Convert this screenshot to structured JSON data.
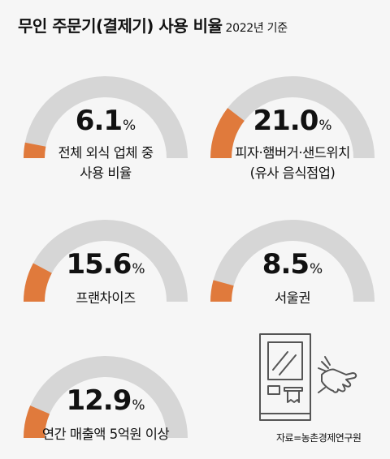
{
  "title": "무인 주문기(결제기) 사용 비율",
  "subtitle": "2022년 기준",
  "source": "자료=농촌경제연구원",
  "colors": {
    "track": "#d6d6d6",
    "fill": "#e07a3c",
    "background": "#f6f6f6"
  },
  "icon": "kiosk-hand-icon",
  "chart_data": {
    "type": "gauge",
    "unit": "%",
    "max": 100,
    "items": [
      {
        "value": 6.1,
        "value_text": "6.1",
        "label_lines": [
          "전체 외식 업체 중",
          "사용 비율"
        ]
      },
      {
        "value": 21.0,
        "value_text": "21.0",
        "label_lines": [
          "피자·햄버거·샌드위치",
          "(유사 음식점업)"
        ]
      },
      {
        "value": 15.6,
        "value_text": "15.6",
        "label_lines": [
          "프랜차이즈"
        ]
      },
      {
        "value": 8.5,
        "value_text": "8.5",
        "label_lines": [
          "서울권"
        ]
      },
      {
        "value": 12.9,
        "value_text": "12.9",
        "label_lines": [
          "연간 매출액 5억원 이상"
        ]
      }
    ]
  }
}
